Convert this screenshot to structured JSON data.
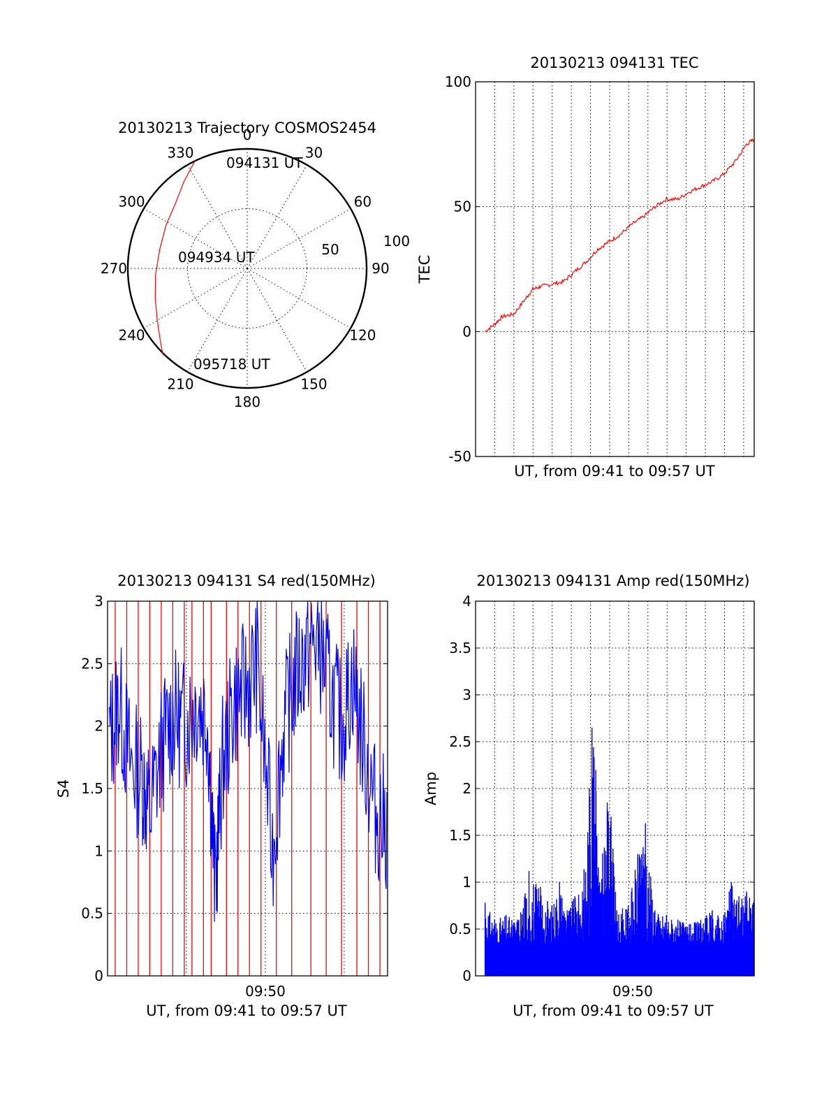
{
  "colors": {
    "red": "#ff0000",
    "blue": "#0000ff",
    "axis": "#000000"
  },
  "chart_data": [
    {
      "id": "trajectory",
      "type": "polar",
      "title": "20130213 Trajectory COSMOS2454",
      "azimuth_labels": [
        "0",
        "30",
        "60",
        "90",
        "120",
        "150",
        "180",
        "210",
        "240",
        "270",
        "300",
        "330"
      ],
      "radial_labels": [
        "50",
        "100"
      ],
      "time_labels": {
        "start": "094131 UT",
        "mid": "094934 UT",
        "end": "095718 UT"
      },
      "rlim": [
        0,
        100
      ],
      "grid": true,
      "track": {
        "name": "",
        "color": "#ff0000",
        "azimuth_deg": [
          334,
          324,
          312,
          298,
          282,
          266,
          252,
          240,
          232,
          227,
          224
        ],
        "radius": [
          100,
          90,
          81,
          77,
          75,
          77,
          81,
          87,
          93,
          98,
          101
        ]
      }
    },
    {
      "id": "tec",
      "type": "line",
      "title": "20130213 094131 TEC",
      "xlabel": "UT, from 09:41 to 09:57 UT",
      "ylabel": "TEC",
      "ylim": [
        -50,
        100
      ],
      "yticks": [
        "-50",
        "0",
        "50",
        "100"
      ],
      "xlim_minutes": [
        9.3,
        16.6
      ],
      "x_grid_count": 14,
      "color": "#ff0000",
      "series": [
        {
          "name": "",
          "x": [
            9.55,
            9.8,
            10.0,
            10.3,
            10.6,
            10.8,
            11.0,
            11.3,
            11.6,
            11.9,
            12.2,
            12.5,
            12.8,
            13.1,
            13.4,
            13.7,
            14.0,
            14.3,
            14.6,
            14.9,
            15.2,
            15.5,
            15.8,
            16.1,
            16.4,
            16.6
          ],
          "y": [
            0,
            3,
            6,
            7,
            13,
            17,
            18,
            19,
            20,
            24,
            28,
            33,
            36,
            39,
            43,
            46,
            50,
            53,
            53,
            56,
            58,
            60,
            63,
            68,
            75,
            77
          ]
        }
      ]
    },
    {
      "id": "s4",
      "type": "line",
      "title": "20130213 094131 S4 red(150MHz)",
      "xlabel": "UT, from 09:41 to 09:57 UT",
      "ylabel": "S4",
      "ylim": [
        0,
        3
      ],
      "yticks": [
        "0",
        "0.5",
        "1",
        "1.5",
        "2",
        "2.5",
        "3"
      ],
      "xticks": [
        "09:50"
      ],
      "xlim_minutes": [
        9.3,
        16.6
      ],
      "series": [
        {
          "name": "",
          "color": "#0000ff",
          "x": [
            9.35,
            9.6,
            9.9,
            10.2,
            10.4,
            10.7,
            11.0,
            11.3,
            11.6,
            11.9,
            12.1,
            12.3,
            12.6,
            12.9,
            13.2,
            13.6,
            13.9,
            14.2,
            14.5,
            14.8,
            15.1,
            15.4,
            15.7,
            16.0,
            16.3,
            16.6
          ],
          "y": [
            1.9,
            2.2,
            1.7,
            1.6,
            1.3,
            1.8,
            2.1,
            2.0,
            2.2,
            2.1,
            0.7,
            1.7,
            2.2,
            2.3,
            2.5,
            1.0,
            2.0,
            2.4,
            2.6,
            2.7,
            2.3,
            2.0,
            2.4,
            1.8,
            1.3,
            1.2
          ]
        },
        {
          "name": "",
          "color": "#ff0000",
          "x": [
            9.5,
            9.8,
            10.1,
            10.4,
            10.7,
            11.0,
            11.3,
            11.5,
            11.8,
            12.0,
            12.4,
            12.7,
            13.0,
            13.3,
            13.7,
            14.1,
            14.6,
            15.0,
            15.4,
            15.8,
            16.1,
            16.4
          ],
          "y": [
            3,
            3,
            3,
            3,
            3,
            3,
            3,
            3,
            3,
            3,
            3,
            3,
            3,
            3,
            3,
            3,
            3,
            3,
            3,
            3,
            3,
            3
          ]
        }
      ]
    },
    {
      "id": "amp",
      "type": "bar",
      "title": "20130213 094131 Amp red(150MHz)",
      "xlabel": "UT, from 09:41 to 09:57 UT",
      "ylabel": "Amp",
      "ylim": [
        0,
        4
      ],
      "yticks": [
        "0",
        "0.5",
        "1",
        "1.5",
        "2",
        "2.5",
        "3",
        "3.5",
        "4"
      ],
      "xticks": [
        "09:50"
      ],
      "xlim_minutes": [
        9.3,
        16.6
      ],
      "color": "#0000ff",
      "series": [
        {
          "name": "",
          "x": [
            9.55,
            9.8,
            10.1,
            10.4,
            10.7,
            11.0,
            11.3,
            11.5,
            11.7,
            11.9,
            12.1,
            12.35,
            12.45,
            12.55,
            12.75,
            12.85,
            13.0,
            13.3,
            13.55,
            13.65,
            13.75,
            14.0,
            14.3,
            14.6,
            14.9,
            15.2,
            15.5,
            15.8,
            16.0,
            16.2,
            16.4,
            16.6
          ],
          "y": [
            0.78,
            0.6,
            0.65,
            0.6,
            1.12,
            0.95,
            0.75,
            1.0,
            0.7,
            0.85,
            0.9,
            2.65,
            2.2,
            1.0,
            1.85,
            1.7,
            0.7,
            0.75,
            1.3,
            1.3,
            1.63,
            0.7,
            0.65,
            0.6,
            0.55,
            0.6,
            0.7,
            0.65,
            1.0,
            0.85,
            0.9,
            0.8
          ]
        }
      ]
    }
  ]
}
